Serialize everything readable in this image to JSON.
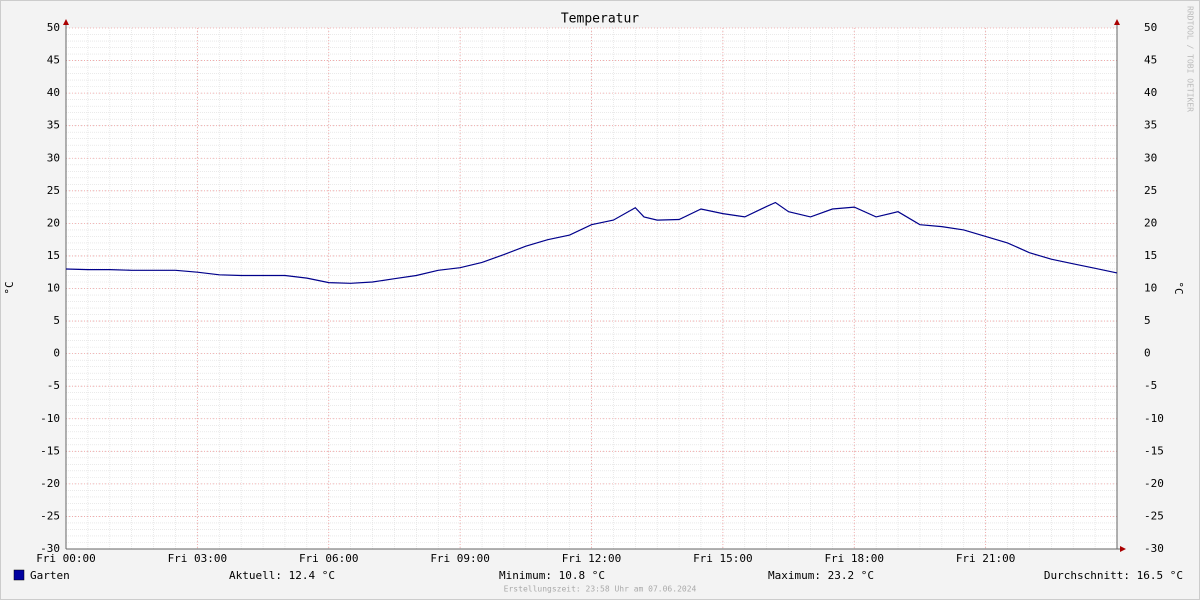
{
  "chart_data": {
    "type": "line",
    "title": "Temperatur",
    "y_label": "°C",
    "y2_label": "°C",
    "watermark": "RRDTOOL / TOBI OETIKER",
    "x": [
      0,
      0.5,
      1,
      1.5,
      2,
      2.5,
      3,
      3.5,
      4,
      4.5,
      5,
      5.5,
      6,
      6.5,
      7,
      7.5,
      8,
      8.5,
      9,
      9.5,
      10,
      10.5,
      11,
      11.5,
      12,
      12.5,
      13,
      13.2,
      13.5,
      14,
      14.5,
      15,
      15.5,
      16,
      16.2,
      16.5,
      17,
      17.5,
      18,
      18.5,
      19,
      19.5,
      20,
      20.5,
      21,
      21.5,
      22,
      22.5,
      23,
      23.5,
      24
    ],
    "series": [
      {
        "name": "Garten",
        "color": "#00008b",
        "values": [
          13.0,
          12.9,
          12.9,
          12.8,
          12.8,
          12.8,
          12.5,
          12.1,
          12.0,
          12.0,
          12.0,
          11.6,
          10.9,
          10.8,
          11.0,
          11.5,
          12.0,
          12.8,
          13.2,
          14.0,
          15.2,
          16.5,
          17.5,
          18.2,
          19.8,
          20.5,
          22.4,
          21.0,
          20.5,
          20.6,
          22.2,
          21.5,
          21.0,
          22.6,
          23.2,
          21.8,
          21.0,
          22.2,
          22.5,
          21.0,
          21.8,
          19.8,
          19.5,
          19.0,
          18.0,
          17.0,
          15.5,
          14.5,
          13.8,
          13.1,
          12.4
        ]
      }
    ],
    "xlim": [
      0,
      24
    ],
    "xticks": [
      {
        "value": 0,
        "label": "Fri 00:00"
      },
      {
        "value": 3,
        "label": "Fri 03:00"
      },
      {
        "value": 6,
        "label": "Fri 06:00"
      },
      {
        "value": 9,
        "label": "Fri 09:00"
      },
      {
        "value": 12,
        "label": "Fri 12:00"
      },
      {
        "value": 15,
        "label": "Fri 15:00"
      },
      {
        "value": 18,
        "label": "Fri 18:00"
      },
      {
        "value": 21,
        "label": "Fri 21:00"
      }
    ],
    "ylim": [
      -30,
      50
    ],
    "yticks": [
      -30,
      -25,
      -20,
      -15,
      -10,
      -5,
      0,
      5,
      10,
      15,
      20,
      25,
      30,
      35,
      40,
      45,
      50
    ],
    "grid": true,
    "stats": [
      "Aktuell: 12.4 °C",
      "Minimum: 10.8 °C",
      "Maximum: 23.2 °C",
      "Durchschnitt: 16.5 °C"
    ],
    "footer": "Erstellungszeit: 23:58 Uhr am 07.06.2024"
  }
}
